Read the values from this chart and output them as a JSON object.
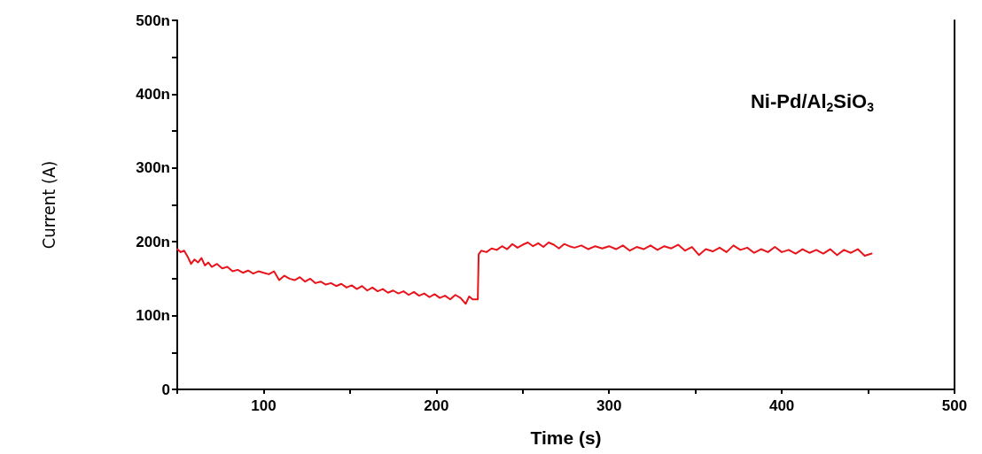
{
  "chart_data": {
    "type": "line",
    "xlabel": "Time (s)",
    "ylabel": "Current (A)",
    "annotations": [
      "Ni-Pd/Al$_{2}$SiO$_{3}$"
    ],
    "xlim": [
      50,
      500
    ],
    "xticks": [
      {
        "value": 50,
        "label": null
      },
      100,
      {
        "value": 150,
        "label": null
      },
      200,
      {
        "value": 250,
        "label": null
      },
      300,
      {
        "value": 350,
        "label": null
      },
      400,
      {
        "value": 450,
        "label": null
      },
      500
    ],
    "ylim": [
      0,
      500
    ],
    "yticks": [
      0,
      {
        "value": 50,
        "label": null
      },
      {
        "value": 100,
        "label": "100n"
      },
      {
        "value": 150,
        "label": null
      },
      {
        "value": 200,
        "label": "200n"
      },
      {
        "value": 250,
        "label": null
      },
      {
        "value": 300,
        "label": "300n"
      },
      {
        "value": 350,
        "label": null
      },
      {
        "value": 400,
        "label": "400n"
      },
      {
        "value": 450,
        "label": null
      },
      {
        "value": 500,
        "label": "500n"
      }
    ],
    "grid": false,
    "marker": "none",
    "line_style": "solid",
    "series": [
      {
        "color": "#e8141b",
        "x": [
          50,
          52,
          54,
          56,
          58,
          60,
          62,
          64,
          66,
          68,
          70,
          73,
          76,
          79,
          82,
          85,
          88,
          91,
          94,
          97,
          100,
          103,
          106,
          109,
          112,
          115,
          118,
          121,
          124,
          127,
          130,
          133,
          136,
          139,
          142,
          145,
          148,
          151,
          154,
          157,
          160,
          163,
          166,
          169,
          172,
          175,
          178,
          181,
          184,
          187,
          190,
          193,
          196,
          199,
          202,
          205,
          208,
          211,
          214,
          217,
          219,
          221,
          223,
          224,
          224.5,
          226,
          229,
          232,
          235,
          238,
          241,
          244,
          247,
          250,
          253,
          256,
          259,
          262,
          265,
          268,
          271,
          274,
          277,
          280,
          284,
          288,
          292,
          296,
          300,
          304,
          308,
          312,
          316,
          320,
          324,
          328,
          332,
          336,
          340,
          344,
          348,
          352,
          356,
          360,
          364,
          368,
          372,
          376,
          380,
          384,
          388,
          392,
          396,
          400,
          404,
          408,
          412,
          416,
          420,
          424,
          428,
          432,
          436,
          440,
          444,
          448,
          452
        ],
        "values": [
          190,
          186,
          188,
          180,
          170,
          176,
          172,
          178,
          168,
          172,
          166,
          170,
          164,
          166,
          160,
          162,
          158,
          161,
          157,
          160,
          158,
          156,
          160,
          148,
          154,
          150,
          148,
          152,
          146,
          150,
          144,
          146,
          142,
          144,
          140,
          143,
          138,
          141,
          136,
          140,
          134,
          138,
          133,
          136,
          131,
          134,
          130,
          133,
          128,
          132,
          127,
          130,
          125,
          129,
          124,
          127,
          122,
          128,
          124,
          116,
          126,
          122,
          122,
          122,
          183,
          188,
          186,
          191,
          189,
          194,
          190,
          197,
          192,
          196,
          199,
          194,
          198,
          193,
          199,
          196,
          191,
          197,
          194,
          192,
          195,
          190,
          194,
          191,
          194,
          190,
          195,
          188,
          193,
          190,
          195,
          189,
          194,
          191,
          196,
          188,
          193,
          182,
          190,
          187,
          192,
          186,
          195,
          189,
          192,
          185,
          190,
          186,
          193,
          186,
          189,
          184,
          190,
          185,
          189,
          184,
          190,
          182,
          189,
          185,
          190,
          181,
          184
        ]
      }
    ]
  }
}
